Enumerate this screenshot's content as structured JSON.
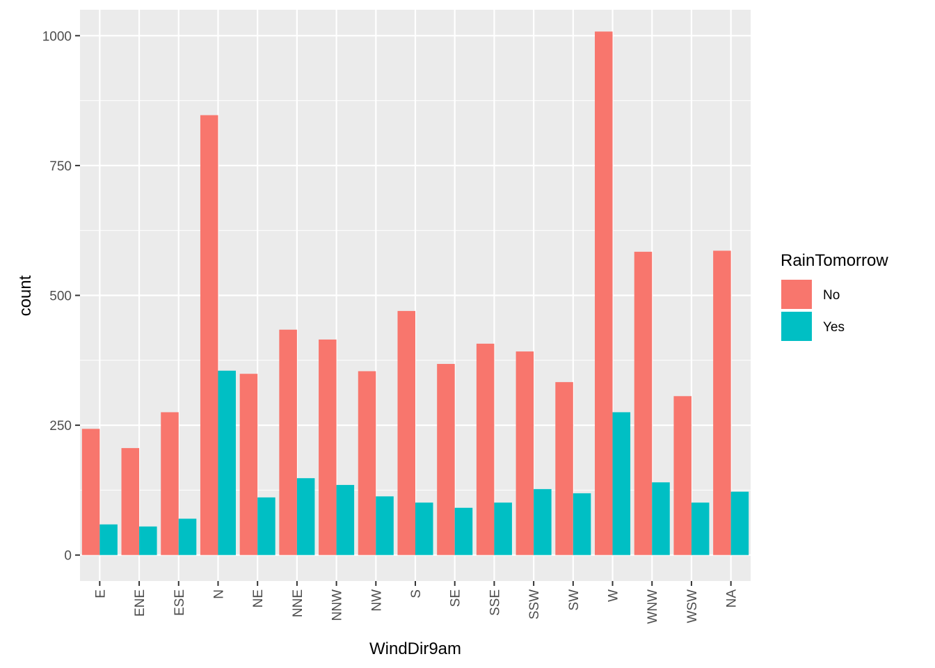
{
  "chart_data": {
    "type": "bar",
    "title": "",
    "xlabel": "WindDir9am",
    "ylabel": "count",
    "categories": [
      "E",
      "ENE",
      "ESE",
      "N",
      "NE",
      "NNE",
      "NNW",
      "NW",
      "S",
      "SE",
      "SSE",
      "SSW",
      "SW",
      "W",
      "WNW",
      "WSW",
      "NA"
    ],
    "series": [
      {
        "name": "No",
        "color": "#F8766D",
        "values": [
          243,
          206,
          275,
          847,
          349,
          434,
          415,
          354,
          470,
          368,
          407,
          392,
          333,
          1008,
          584,
          306,
          586
        ]
      },
      {
        "name": "Yes",
        "color": "#00BFC4",
        "values": [
          59,
          55,
          70,
          355,
          111,
          148,
          135,
          113,
          101,
          91,
          101,
          127,
          119,
          275,
          140,
          101,
          122
        ]
      }
    ],
    "ylim": [
      -50,
      1050
    ],
    "yticks": [
      0,
      250,
      500,
      750,
      1000
    ],
    "legend": {
      "title": "RainTomorrow",
      "position": "right"
    },
    "grid": true,
    "background": "#EBEBEB"
  }
}
